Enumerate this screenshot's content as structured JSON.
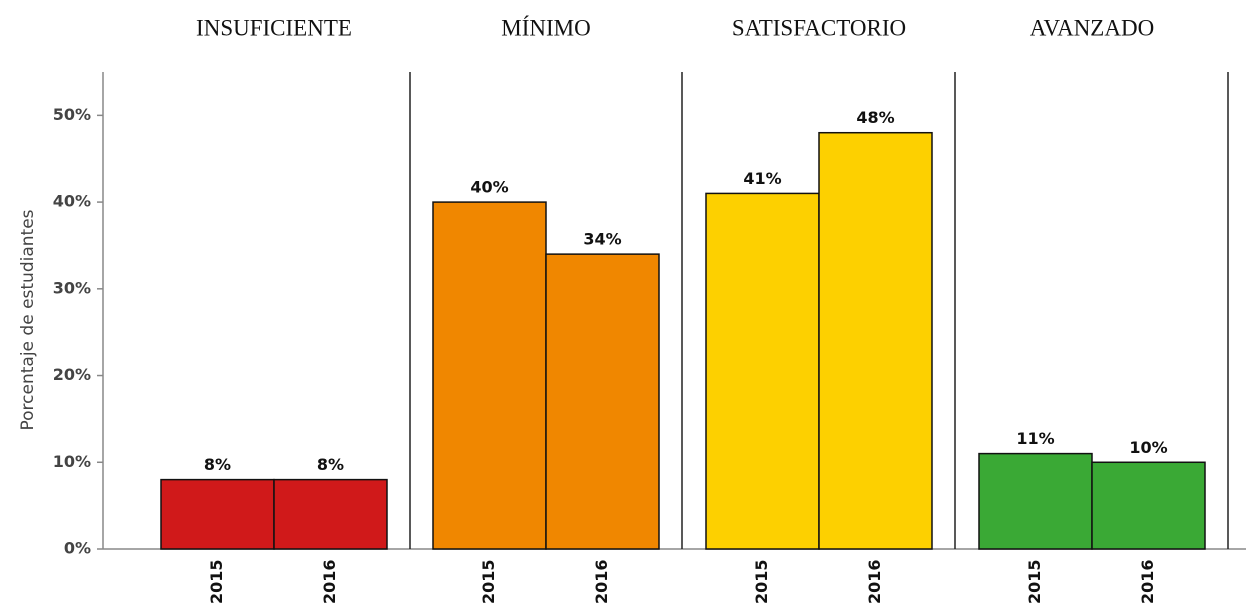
{
  "chart_data": {
    "type": "bar",
    "y_label": "Porcentaje de estudiantes",
    "ylim": [
      0,
      55
    ],
    "yticks": [
      {
        "value": 0,
        "label": "0%"
      },
      {
        "value": 10,
        "label": "10%"
      },
      {
        "value": 20,
        "label": "20%"
      },
      {
        "value": 30,
        "label": "30%"
      },
      {
        "value": 40,
        "label": "40%"
      },
      {
        "value": 50,
        "label": "50%"
      }
    ],
    "panels": [
      {
        "title": "INSUFICIENTE",
        "color": "#d0191a",
        "categories": [
          "2015",
          "2016"
        ],
        "values": [
          8,
          8
        ],
        "value_labels": [
          "8%",
          "8%"
        ]
      },
      {
        "title": "MÍNIMO",
        "color": "#f08700",
        "categories": [
          "2015",
          "2016"
        ],
        "values": [
          40,
          34
        ],
        "value_labels": [
          "40%",
          "34%"
        ]
      },
      {
        "title": "SATISFACTORIO",
        "color": "#fdd000",
        "categories": [
          "2015",
          "2016"
        ],
        "values": [
          41,
          48
        ],
        "value_labels": [
          "41%",
          "48%"
        ]
      },
      {
        "title": "AVANZADO",
        "color": "#3aa935",
        "categories": [
          "2015",
          "2016"
        ],
        "values": [
          11,
          10
        ],
        "value_labels": [
          "11%",
          "10%"
        ]
      }
    ]
  }
}
